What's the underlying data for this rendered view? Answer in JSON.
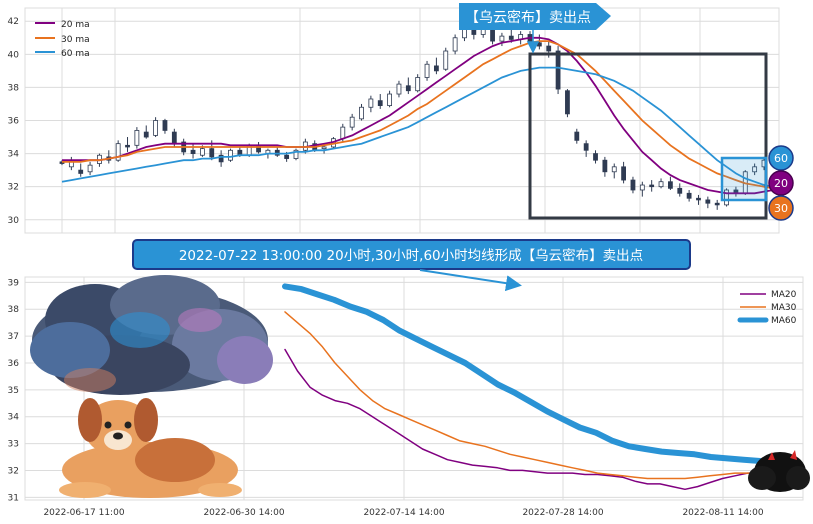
{
  "colors": {
    "ma20": "#800080",
    "ma30": "#e8731f",
    "ma60": "#2a93d5",
    "callout_bg": "#2a93d5",
    "callout_border": "#1b3a8a",
    "box": "#333a44",
    "grid": "#dcdcdc",
    "up": "#ffffff",
    "down": "#2f3b52"
  },
  "top_callout": "【乌云密布】卖出点",
  "banner": "2022-07-22 13:00:00 20小时,30小时,60小时均线形成【乌云密布】卖出点",
  "badges": [
    "60",
    "20",
    "30"
  ],
  "illustrations": [
    "dark-cloud-icon",
    "dog-icon",
    "black-cloud-icon"
  ],
  "chart_data": [
    {
      "type": "candlestick",
      "ylim": [
        29.2,
        42.8
      ],
      "yticks": [
        30,
        32,
        34,
        36,
        38,
        40,
        42
      ],
      "legend": {
        "position": "top-left",
        "entries": [
          "20 ma",
          "30 ma",
          "60 ma"
        ]
      },
      "ohlc": [
        [
          33.5,
          33.6,
          33.3,
          33.4
        ],
        [
          33.2,
          33.8,
          33.0,
          33.6
        ],
        [
          33.0,
          33.4,
          32.6,
          32.8
        ],
        [
          32.9,
          33.5,
          32.7,
          33.3
        ],
        [
          33.4,
          34.0,
          33.2,
          33.9
        ],
        [
          33.8,
          34.2,
          33.4,
          33.6
        ],
        [
          33.6,
          34.8,
          33.5,
          34.6
        ],
        [
          34.5,
          35.0,
          34.1,
          34.4
        ],
        [
          34.5,
          35.6,
          34.3,
          35.4
        ],
        [
          35.3,
          35.7,
          34.9,
          35.0
        ],
        [
          35.1,
          36.2,
          35.0,
          36.0
        ],
        [
          36.0,
          36.1,
          35.2,
          35.4
        ],
        [
          35.3,
          35.5,
          34.4,
          34.6
        ],
        [
          34.7,
          34.9,
          33.9,
          34.1
        ],
        [
          34.2,
          34.6,
          33.7,
          34.0
        ],
        [
          33.9,
          34.5,
          33.8,
          34.3
        ],
        [
          34.3,
          34.8,
          33.6,
          33.8
        ],
        [
          33.9,
          34.2,
          33.2,
          33.5
        ],
        [
          33.6,
          34.3,
          33.5,
          34.2
        ],
        [
          34.2,
          34.4,
          33.8,
          33.9
        ],
        [
          33.9,
          34.6,
          33.8,
          34.5
        ],
        [
          34.5,
          34.7,
          34.0,
          34.1
        ],
        [
          34.0,
          34.3,
          33.7,
          34.2
        ],
        [
          34.2,
          34.4,
          33.8,
          33.9
        ],
        [
          33.9,
          34.1,
          33.5,
          33.7
        ],
        [
          33.7,
          34.3,
          33.6,
          34.2
        ],
        [
          34.2,
          34.9,
          34.0,
          34.7
        ],
        [
          34.6,
          34.8,
          34.1,
          34.2
        ],
        [
          34.3,
          34.5,
          34.0,
          34.4
        ],
        [
          34.4,
          35.0,
          34.3,
          34.9
        ],
        [
          34.9,
          35.8,
          34.7,
          35.6
        ],
        [
          35.6,
          36.4,
          35.4,
          36.2
        ],
        [
          36.1,
          37.0,
          36.0,
          36.8
        ],
        [
          36.8,
          37.5,
          36.5,
          37.3
        ],
        [
          37.2,
          37.6,
          36.7,
          36.9
        ],
        [
          36.9,
          37.8,
          36.8,
          37.6
        ],
        [
          37.6,
          38.4,
          37.4,
          38.2
        ],
        [
          38.1,
          38.6,
          37.6,
          37.8
        ],
        [
          37.8,
          38.8,
          37.7,
          38.6
        ],
        [
          38.6,
          39.6,
          38.4,
          39.4
        ],
        [
          39.3,
          39.8,
          38.8,
          39.0
        ],
        [
          39.1,
          40.4,
          39.0,
          40.2
        ],
        [
          40.2,
          41.2,
          40.0,
          41.0
        ],
        [
          41.0,
          42.2,
          40.8,
          41.8
        ],
        [
          41.7,
          42.0,
          40.9,
          41.2
        ],
        [
          41.2,
          41.9,
          41.0,
          41.6
        ],
        [
          41.6,
          41.8,
          40.6,
          40.8
        ],
        [
          40.8,
          41.3,
          40.5,
          41.1
        ],
        [
          41.1,
          41.6,
          40.7,
          40.9
        ],
        [
          40.9,
          41.4,
          40.6,
          41.2
        ],
        [
          41.2,
          41.4,
          40.5,
          40.7
        ],
        [
          40.7,
          41.2,
          40.3,
          40.5
        ],
        [
          40.5,
          40.8,
          39.8,
          40.2
        ],
        [
          40.2,
          40.5,
          37.6,
          37.9
        ],
        [
          37.8,
          37.9,
          36.2,
          36.4
        ],
        [
          35.3,
          35.5,
          34.6,
          34.8
        ],
        [
          34.6,
          34.8,
          33.8,
          34.2
        ],
        [
          34.0,
          34.2,
          33.4,
          33.6
        ],
        [
          33.6,
          33.8,
          32.6,
          32.9
        ],
        [
          32.9,
          33.4,
          32.5,
          33.2
        ],
        [
          33.2,
          33.5,
          32.2,
          32.4
        ],
        [
          32.4,
          32.6,
          31.6,
          31.8
        ],
        [
          31.8,
          32.3,
          31.4,
          32.1
        ],
        [
          32.1,
          32.4,
          31.7,
          32.0
        ],
        [
          32.0,
          32.5,
          31.9,
          32.3
        ],
        [
          32.3,
          32.6,
          31.8,
          31.9
        ],
        [
          31.9,
          32.2,
          31.4,
          31.6
        ],
        [
          31.6,
          31.8,
          31.1,
          31.3
        ],
        [
          31.3,
          31.5,
          30.9,
          31.2
        ],
        [
          31.2,
          31.4,
          30.7,
          31.0
        ],
        [
          31.0,
          31.2,
          30.6,
          30.9
        ],
        [
          30.9,
          31.9,
          30.8,
          31.8
        ],
        [
          31.8,
          32.0,
          31.4,
          31.6
        ],
        [
          31.6,
          33.0,
          31.5,
          32.9
        ],
        [
          32.9,
          33.4,
          32.7,
          33.2
        ],
        [
          33.2,
          33.8,
          33.0,
          33.6
        ]
      ],
      "ma20": [
        33.6,
        33.6,
        33.6,
        33.6,
        33.6,
        33.7,
        33.8,
        34.0,
        34.2,
        34.4,
        34.5,
        34.6,
        34.6,
        34.6,
        34.6,
        34.6,
        34.6,
        34.6,
        34.5,
        34.5,
        34.5,
        34.5,
        34.5,
        34.5,
        34.4,
        34.4,
        34.4,
        34.5,
        34.6,
        34.7,
        34.9,
        35.1,
        35.4,
        35.7,
        36.0,
        36.3,
        36.7,
        37.1,
        37.5,
        37.9,
        38.3,
        38.7,
        39.1,
        39.5,
        39.9,
        40.2,
        40.5,
        40.7,
        40.8,
        40.9,
        41.0,
        41.0,
        40.9,
        40.6,
        40.2,
        39.6,
        38.9,
        38.1,
        37.2,
        36.3,
        35.5,
        34.8,
        34.1,
        33.6,
        33.1,
        32.7,
        32.4,
        32.2,
        32.0,
        31.8,
        31.7,
        31.6,
        31.6,
        31.6,
        31.6,
        31.7,
        31.8,
        32.0
      ],
      "ma30": [
        33.5,
        33.5,
        33.5,
        33.6,
        33.6,
        33.7,
        33.8,
        33.9,
        34.1,
        34.2,
        34.3,
        34.4,
        34.4,
        34.4,
        34.4,
        34.4,
        34.4,
        34.4,
        34.4,
        34.4,
        34.4,
        34.4,
        34.4,
        34.4,
        34.4,
        34.4,
        34.4,
        34.4,
        34.5,
        34.6,
        34.7,
        34.8,
        35.0,
        35.2,
        35.4,
        35.7,
        36.0,
        36.3,
        36.7,
        37.0,
        37.4,
        37.8,
        38.2,
        38.6,
        39.0,
        39.4,
        39.7,
        40.0,
        40.3,
        40.5,
        40.7,
        40.8,
        40.8,
        40.6,
        40.3,
        40.0,
        39.5,
        39.0,
        38.4,
        37.8,
        37.2,
        36.6,
        36.0,
        35.5,
        35.0,
        34.5,
        34.1,
        33.7,
        33.4,
        33.1,
        32.8,
        32.6,
        32.4,
        32.2,
        32.1,
        32.0,
        31.9,
        31.9
      ],
      "ma60": [
        32.3,
        32.4,
        32.5,
        32.6,
        32.7,
        32.8,
        32.9,
        33.0,
        33.1,
        33.2,
        33.3,
        33.4,
        33.5,
        33.6,
        33.6,
        33.7,
        33.7,
        33.8,
        33.8,
        33.9,
        33.9,
        33.9,
        34.0,
        34.0,
        34.0,
        34.1,
        34.1,
        34.2,
        34.2,
        34.3,
        34.4,
        34.5,
        34.6,
        34.8,
        35.0,
        35.2,
        35.4,
        35.6,
        35.9,
        36.2,
        36.5,
        36.8,
        37.1,
        37.4,
        37.7,
        38.0,
        38.3,
        38.6,
        38.8,
        39.0,
        39.1,
        39.2,
        39.2,
        39.2,
        39.1,
        39.0,
        38.9,
        38.8,
        38.6,
        38.4,
        38.1,
        37.8,
        37.4,
        37.0,
        36.6,
        36.1,
        35.6,
        35.1,
        34.6,
        34.1,
        33.6,
        33.2,
        32.8,
        32.5,
        32.3,
        32.1,
        32.0,
        32.0
      ]
    },
    {
      "type": "line",
      "ylim": [
        30.9,
        39.2
      ],
      "yticks": [
        31,
        32,
        33,
        34,
        35,
        36,
        37,
        38,
        39
      ],
      "xticks": [
        "2022-06-17 11:00",
        "2022-06-30 14:00",
        "2022-07-14 14:00",
        "2022-07-28 14:00",
        "2022-08-11 14:00"
      ],
      "legend": {
        "position": "top-right"
      },
      "series": [
        {
          "name": "MA20",
          "values": [
            36.5,
            35.7,
            35.1,
            34.8,
            34.6,
            34.5,
            34.3,
            34.0,
            33.7,
            33.4,
            33.1,
            32.8,
            32.6,
            32.4,
            32.3,
            32.2,
            32.15,
            32.1,
            32.0,
            32.0,
            31.95,
            31.9,
            31.9,
            31.9,
            31.85,
            31.85,
            31.8,
            31.75,
            31.6,
            31.5,
            31.5,
            31.4,
            31.3,
            31.4,
            31.55,
            31.7,
            31.8,
            31.9,
            31.9
          ]
        },
        {
          "name": "MA30",
          "values": [
            37.9,
            37.5,
            37.1,
            36.6,
            36.0,
            35.5,
            35.0,
            34.6,
            34.3,
            34.1,
            33.9,
            33.7,
            33.5,
            33.3,
            33.1,
            33.0,
            32.9,
            32.75,
            32.6,
            32.5,
            32.4,
            32.3,
            32.2,
            32.1,
            32.0,
            31.9,
            31.85,
            31.8,
            31.75,
            31.7,
            31.7,
            31.7,
            31.7,
            31.75,
            31.8,
            31.85,
            31.9,
            31.9,
            31.9
          ]
        },
        {
          "name": "MA60",
          "values": [
            38.85,
            38.75,
            38.55,
            38.35,
            38.1,
            37.9,
            37.6,
            37.2,
            36.9,
            36.6,
            36.3,
            36.0,
            35.6,
            35.2,
            34.9,
            34.55,
            34.2,
            33.9,
            33.6,
            33.4,
            33.1,
            32.9,
            32.8,
            32.7,
            32.65,
            32.6,
            32.5,
            32.45,
            32.4,
            32.35
          ]
        }
      ]
    }
  ]
}
